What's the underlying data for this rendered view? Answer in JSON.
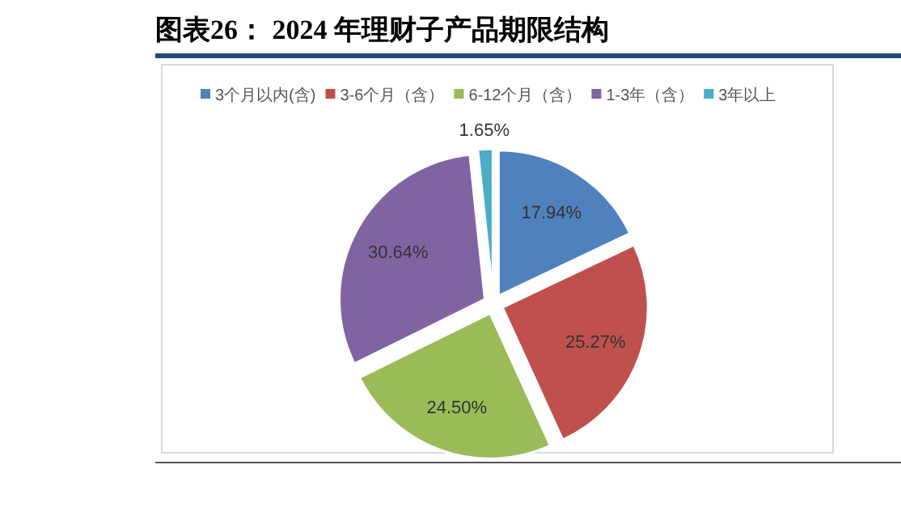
{
  "chart_data": {
    "type": "pie",
    "title": "图表26：  2024 年理财子产品期限结构",
    "categories": [
      "3个月以内(含)",
      "3-6个月（含）",
      "6-12个月（含）",
      "1-3年（含）",
      "3年以上"
    ],
    "values": [
      17.94,
      25.27,
      24.5,
      30.64,
      1.65
    ],
    "colors": [
      "#4f81bd",
      "#c0504d",
      "#9bbb59",
      "#8064a2",
      "#4bacc6"
    ],
    "value_labels": [
      "17.94%",
      "25.27%",
      "24.50%",
      "30.64%",
      "1.65%"
    ],
    "legend": "top"
  }
}
